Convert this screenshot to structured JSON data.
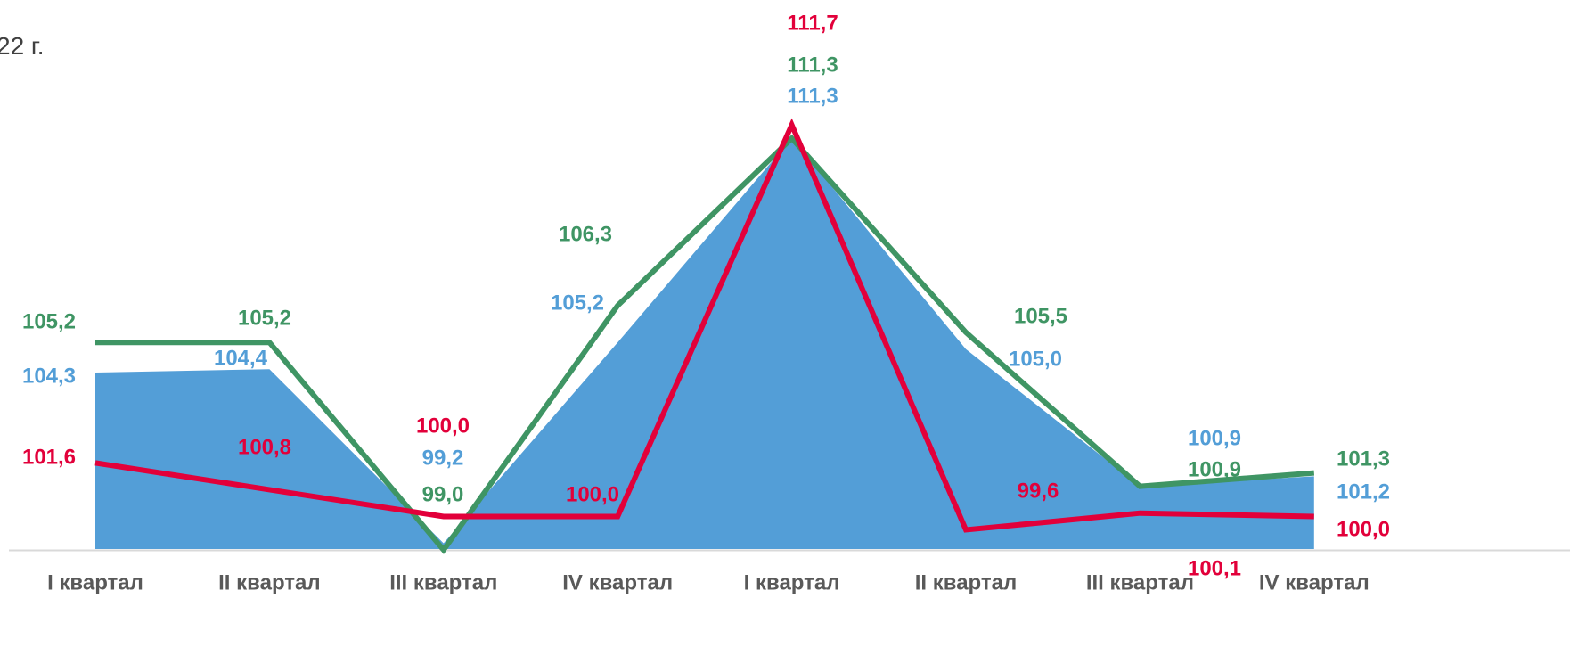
{
  "title_fragment": "22 г.",
  "colors": {
    "area": "#539ED7",
    "green": "#3F9564",
    "red": "#E2003A",
    "axis": "#D9D9D9",
    "tick_text": "#595959"
  },
  "chart_data": {
    "type": "line",
    "categories": [
      "I квартал",
      "II квартал",
      "III квартал",
      "IV квартал",
      "I квартал",
      "II квартал",
      "III квартал",
      "IV квартал"
    ],
    "series": [
      {
        "style": "area",
        "color": "#539ED7",
        "values": [
          104.3,
          104.4,
          99.2,
          105.2,
          111.3,
          105.0,
          100.9,
          101.2
        ],
        "labels": [
          "104,3",
          "104,4",
          "99,2",
          "105,2",
          "111,3",
          "105,0",
          "100,9",
          "101,2"
        ]
      },
      {
        "style": "line",
        "color": "#3F9564",
        "values": [
          105.2,
          105.2,
          99.0,
          106.3,
          111.3,
          105.5,
          100.9,
          101.3
        ],
        "labels": [
          "105,2",
          "105,2",
          "99,0",
          "106,3",
          "111,3",
          "105,5",
          "100,9",
          "101,3"
        ]
      },
      {
        "style": "line",
        "color": "#E2003A",
        "values": [
          101.6,
          100.8,
          100.0,
          100.0,
          111.7,
          99.6,
          100.1,
          100.0
        ],
        "labels": [
          "101,6",
          "100,8",
          "100,0",
          "100,0",
          "111,7",
          "99,6",
          "100,1",
          "100,0"
        ]
      }
    ],
    "y_axis_visible": false,
    "grid": false,
    "legend": "none"
  }
}
